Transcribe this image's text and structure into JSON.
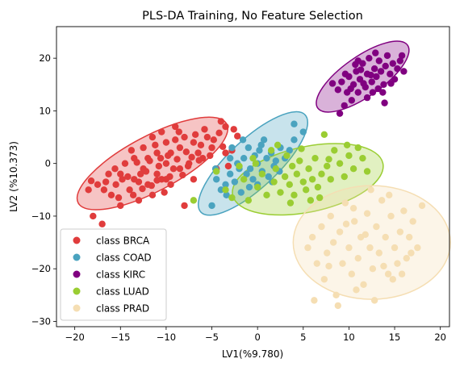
{
  "chart_data": {
    "type": "scatter",
    "title": "PLS-DA Training, No Feature Selection",
    "xlabel": "LV1(%9.780)",
    "ylabel": "LV2 (%10.373)",
    "xlim": [
      -22,
      21
    ],
    "ylim": [
      -31,
      26
    ],
    "xticks": [
      -20,
      -15,
      -10,
      -5,
      0,
      5,
      10,
      15,
      20
    ],
    "yticks": [
      -30,
      -20,
      -10,
      0,
      10,
      20
    ],
    "grid": false,
    "legend_position": "lower-left",
    "series": [
      {
        "name": "class BRCA",
        "color": "#e03c3c",
        "ellipse": {
          "cx": -11.5,
          "cy": 0,
          "rx": 9.2,
          "ry": 5.2,
          "angle_deg": 28
        },
        "points": [
          [
            -18,
            -10
          ],
          [
            -17,
            -11.5
          ],
          [
            -18.5,
            -5
          ],
          [
            -18.2,
            -3.3
          ],
          [
            -16.3,
            -2
          ],
          [
            -15,
            -8
          ],
          [
            -16,
            -6
          ],
          [
            -15.5,
            -4
          ],
          [
            -15,
            -2
          ],
          [
            -14.5,
            0
          ],
          [
            -14,
            -5
          ],
          [
            -13.5,
            -3
          ],
          [
            -13.5,
            1
          ],
          [
            -13,
            -7
          ],
          [
            -12.5,
            -1
          ],
          [
            -12.5,
            3
          ],
          [
            -12,
            -4
          ],
          [
            -12,
            1
          ],
          [
            -11.5,
            -6
          ],
          [
            -11.5,
            5
          ],
          [
            -11,
            -2
          ],
          [
            -11,
            2
          ],
          [
            -10.5,
            -3
          ],
          [
            -10.5,
            6
          ],
          [
            -10,
            0
          ],
          [
            -10,
            4
          ],
          [
            -9.5,
            -4
          ],
          [
            -9.5,
            2
          ],
          [
            -9,
            7
          ],
          [
            -8.5,
            -1
          ],
          [
            -8.5,
            3
          ],
          [
            -8,
            -8
          ],
          [
            -8,
            5
          ],
          [
            -7.5,
            0
          ],
          [
            -7,
            4
          ],
          [
            -7,
            -3
          ],
          [
            -6.5,
            2
          ],
          [
            -6,
            1
          ],
          [
            -5.5,
            5
          ],
          [
            -5,
            3
          ],
          [
            -4.5,
            -1
          ],
          [
            -4,
            8
          ],
          [
            -3.5,
            7
          ],
          [
            -3.5,
            2
          ],
          [
            -13,
            -3.5
          ],
          [
            -12.2,
            -1.5
          ],
          [
            -11.8,
            0.5
          ],
          [
            -10.8,
            -0.5
          ],
          [
            -9.8,
            1.5
          ],
          [
            -9.2,
            -1
          ],
          [
            -8.8,
            0.8
          ],
          [
            -14.2,
            -2.5
          ],
          [
            -15.6,
            -1
          ],
          [
            -16.6,
            -3.5
          ],
          [
            -13.8,
            2.5
          ],
          [
            -11.2,
            3.5
          ],
          [
            -10.2,
            -5.5
          ],
          [
            -9.6,
            -2.5
          ],
          [
            -7.8,
            2.2
          ],
          [
            -6.8,
            5.5
          ],
          [
            -5.8,
            6.5
          ],
          [
            -12.6,
            -4.8
          ],
          [
            -13.2,
            0.2
          ],
          [
            -8.2,
            -2.2
          ],
          [
            -7.2,
            1.2
          ],
          [
            -4.8,
            4.5
          ],
          [
            -2.2,
            5.2
          ],
          [
            -2.8,
            2.5
          ],
          [
            -3.2,
            -0.5
          ],
          [
            -6.2,
            3.5
          ],
          [
            -11,
            -3.2
          ],
          [
            -9,
            4.5
          ],
          [
            -10.6,
            1
          ],
          [
            -8.6,
            6
          ],
          [
            -12.8,
            -2
          ],
          [
            -14.8,
            -3
          ],
          [
            -16.8,
            -5
          ],
          [
            -17.5,
            -4
          ],
          [
            -15.2,
            -6.5
          ],
          [
            -13.6,
            -6
          ],
          [
            -11.6,
            -4.2
          ],
          [
            -10,
            -3
          ],
          [
            -7.6,
            -0.5
          ],
          [
            -6.4,
            0.6
          ],
          [
            -5.2,
            1.5
          ],
          [
            -3.8,
            3.2
          ],
          [
            -4.2,
            5.8
          ],
          [
            -2.6,
            6.5
          ]
        ]
      },
      {
        "name": "class COAD",
        "color": "#4aa3bf",
        "ellipse": {
          "cx": -0.5,
          "cy": 0,
          "rx": 7.8,
          "ry": 4.6,
          "angle_deg": 43
        },
        "points": [
          [
            -5,
            -8
          ],
          [
            -4,
            -5
          ],
          [
            -4.5,
            -3
          ],
          [
            -3.5,
            -4
          ],
          [
            -3,
            -2
          ],
          [
            -3,
            1
          ],
          [
            -2.5,
            -3.5
          ],
          [
            -2.2,
            0
          ],
          [
            -2,
            -1
          ],
          [
            -1.8,
            -5.5
          ],
          [
            -1.5,
            1
          ],
          [
            -1.2,
            -2
          ],
          [
            -1,
            3
          ],
          [
            -0.8,
            -1
          ],
          [
            -0.5,
            -3
          ],
          [
            -0.3,
            1.5
          ],
          [
            0,
            -4
          ],
          [
            0,
            0
          ],
          [
            0.2,
            2.5
          ],
          [
            0.5,
            -1.5
          ],
          [
            0.7,
            4.5
          ],
          [
            1,
            1
          ],
          [
            1.2,
            -2.5
          ],
          [
            1.5,
            2
          ],
          [
            1.8,
            -0.5
          ],
          [
            2,
            0.5
          ],
          [
            2.5,
            3
          ],
          [
            3,
            1
          ],
          [
            3.5,
            2.5
          ],
          [
            4,
            4.5
          ],
          [
            4,
            7.5
          ],
          [
            5,
            6
          ],
          [
            -2.8,
            3
          ],
          [
            -1.6,
            4.5
          ],
          [
            0.4,
            3.5
          ],
          [
            -0.9,
            -4.5
          ],
          [
            1.6,
            -3.5
          ],
          [
            2.4,
            -1.5
          ],
          [
            -4.6,
            -1
          ],
          [
            -3.4,
            -6
          ]
        ]
      },
      {
        "name": "class KIRC",
        "color": "#800080",
        "ellipse": {
          "cx": 11.5,
          "cy": 16.5,
          "rx": 6.0,
          "ry": 3.8,
          "angle_deg": 35
        },
        "points": [
          [
            8.2,
            15.2
          ],
          [
            8.8,
            14
          ],
          [
            9.2,
            15.5
          ],
          [
            9.5,
            11
          ],
          [
            9.8,
            13.5
          ],
          [
            10,
            16.5
          ],
          [
            10.3,
            12
          ],
          [
            10.5,
            15
          ],
          [
            10.8,
            17.5
          ],
          [
            11,
            13.5
          ],
          [
            11.2,
            16
          ],
          [
            11.5,
            19
          ],
          [
            11.8,
            14.5
          ],
          [
            12,
            17
          ],
          [
            12.2,
            20
          ],
          [
            12.5,
            15.5
          ],
          [
            12.8,
            18
          ],
          [
            13,
            16.5
          ],
          [
            13.3,
            19.5
          ],
          [
            13.5,
            17.5
          ],
          [
            13.8,
            15
          ],
          [
            14,
            18.5
          ],
          [
            14.2,
            20.5
          ],
          [
            14.5,
            17
          ],
          [
            14.8,
            19
          ],
          [
            15,
            16
          ],
          [
            15.3,
            18
          ],
          [
            15.6,
            19.5
          ],
          [
            16,
            17.5
          ],
          [
            9,
            9.5
          ],
          [
            10.7,
            18.8
          ],
          [
            11.6,
            15.2
          ],
          [
            12.4,
            16.8
          ],
          [
            13.2,
            14.2
          ],
          [
            10.2,
            14.2
          ],
          [
            11.3,
            17.8
          ],
          [
            12.9,
            21
          ],
          [
            14.6,
            15.2
          ],
          [
            9.6,
            17
          ],
          [
            13.7,
            13.5
          ],
          [
            12.6,
            13.5
          ],
          [
            13.9,
            11.5
          ],
          [
            15.8,
            20.5
          ],
          [
            11,
            19.5
          ],
          [
            12,
            12.5
          ]
        ]
      },
      {
        "name": "class LUAD",
        "color": "#9acd32",
        "ellipse": {
          "cx": 5.5,
          "cy": -3,
          "rx": 8.4,
          "ry": 6.2,
          "angle_deg": 12
        },
        "points": [
          [
            -7,
            -7
          ],
          [
            -4.5,
            -1.5
          ],
          [
            -3.5,
            -5
          ],
          [
            -2.8,
            -6.5
          ],
          [
            -1.5,
            -3
          ],
          [
            -1,
            -7
          ],
          [
            -0.5,
            1
          ],
          [
            0,
            -4.5
          ],
          [
            0.5,
            -2
          ],
          [
            1,
            -6
          ],
          [
            1.5,
            2.5
          ],
          [
            1.8,
            -3.5
          ],
          [
            2,
            -1
          ],
          [
            2.5,
            -5.5
          ],
          [
            3,
            -2.5
          ],
          [
            3.2,
            1.5
          ],
          [
            3.5,
            -4
          ],
          [
            3.8,
            -0.5
          ],
          [
            4,
            -6
          ],
          [
            4.3,
            -2
          ],
          [
            4.6,
            0.5
          ],
          [
            5,
            -3.5
          ],
          [
            5.3,
            -5
          ],
          [
            5.6,
            -1
          ],
          [
            6,
            -3
          ],
          [
            6.3,
            1
          ],
          [
            6.6,
            -4.5
          ],
          [
            7,
            -2
          ],
          [
            7.3,
            5.5
          ],
          [
            7.6,
            -0.5
          ],
          [
            8,
            -3
          ],
          [
            8.4,
            2.5
          ],
          [
            9,
            0
          ],
          [
            9.5,
            -2.5
          ],
          [
            10,
            1.5
          ],
          [
            10.5,
            -1
          ],
          [
            11,
            3
          ],
          [
            11.5,
            1
          ],
          [
            12,
            -1.5
          ],
          [
            -2,
            -0.5
          ],
          [
            -0.2,
            0
          ],
          [
            2.2,
            3.5
          ],
          [
            4.8,
            2.8
          ],
          [
            6.8,
            -6.5
          ],
          [
            5.8,
            -7
          ],
          [
            3.6,
            -7.5
          ],
          [
            7.8,
            0.8
          ],
          [
            9.8,
            3.5
          ]
        ]
      },
      {
        "name": "class PRAD",
        "color": "#f5deb3",
        "ellipse": {
          "cx": 12.5,
          "cy": -15,
          "rx": 8.6,
          "ry": 10.8,
          "angle_deg": 0
        },
        "points": [
          [
            5.5,
            -16
          ],
          [
            6,
            -14
          ],
          [
            6.5,
            -19
          ],
          [
            7,
            -12
          ],
          [
            7.3,
            -22
          ],
          [
            7.6,
            -17
          ],
          [
            8,
            -10
          ],
          [
            8.3,
            -15
          ],
          [
            8.6,
            -25
          ],
          [
            9,
            -13
          ],
          [
            9.3,
            -19
          ],
          [
            9.6,
            -7.5
          ],
          [
            10,
            -16
          ],
          [
            10.3,
            -21
          ],
          [
            10.6,
            -11
          ],
          [
            11,
            -18
          ],
          [
            11.3,
            -14
          ],
          [
            11.6,
            -23
          ],
          [
            12,
            -9.5
          ],
          [
            12.3,
            -16
          ],
          [
            12.6,
            -20
          ],
          [
            13,
            -12
          ],
          [
            13.3,
            -17
          ],
          [
            13.6,
            -7
          ],
          [
            14,
            -14
          ],
          [
            14.3,
            -21
          ],
          [
            14.6,
            -10
          ],
          [
            15,
            -16
          ],
          [
            15.3,
            -19
          ],
          [
            15.6,
            -13
          ],
          [
            16,
            -9
          ],
          [
            16.3,
            -18
          ],
          [
            16.6,
            -14
          ],
          [
            17,
            -11
          ],
          [
            17.5,
            -16
          ],
          [
            18,
            -8
          ],
          [
            6.2,
            -26
          ],
          [
            8.8,
            -27
          ],
          [
            10.8,
            -24
          ],
          [
            12.8,
            -26
          ],
          [
            14.8,
            -22
          ],
          [
            9.7,
            -11.5
          ],
          [
            11.8,
            -13.5
          ],
          [
            13.8,
            -19.5
          ],
          [
            15.8,
            -21
          ],
          [
            7.8,
            -19.5
          ],
          [
            10.5,
            -8.5
          ],
          [
            12.4,
            -5
          ],
          [
            14.4,
            -6
          ],
          [
            16.8,
            -17
          ]
        ]
      }
    ]
  }
}
